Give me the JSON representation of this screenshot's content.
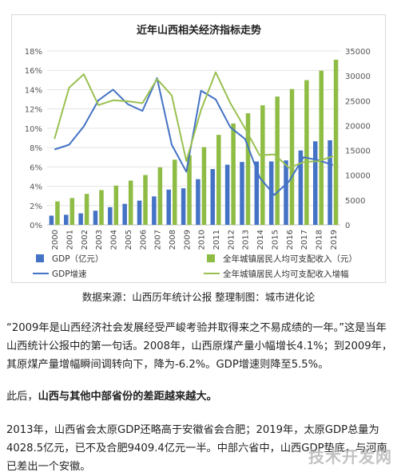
{
  "chart_data": {
    "type": "bar+line",
    "title": "近年山西相关经济指标走势",
    "categories": [
      "2000",
      "2001",
      "2002",
      "2003",
      "2004",
      "2005",
      "2006",
      "2007",
      "2008",
      "2009",
      "2010",
      "2011",
      "2012",
      "2013",
      "2014",
      "2015",
      "2016",
      "2017",
      "2018",
      "2019"
    ],
    "left_axis": {
      "ticks": [
        "0%",
        "2%",
        "4%",
        "6%",
        "8%",
        "10%",
        "12%",
        "14%",
        "16%",
        "18%"
      ],
      "range": [
        0,
        18
      ]
    },
    "right_axis": {
      "ticks": [
        "0",
        "5000",
        "10000",
        "15000",
        "20000",
        "25000",
        "30000",
        "35000"
      ],
      "range": [
        0,
        35000
      ]
    },
    "series": [
      {
        "name": "GDP（亿元）",
        "kind": "bar",
        "axis": "right",
        "color": "#4472c4",
        "values": [
          1850,
          2030,
          2320,
          2850,
          3570,
          4230,
          4880,
          5730,
          7100,
          7360,
          9200,
          11240,
          12110,
          12660,
          12760,
          12770,
          12970,
          14970,
          16820,
          17030
        ]
      },
      {
        "name": "全年城镇居民人均可支配收入（元）",
        "kind": "bar",
        "axis": "right",
        "color": "#8fbc45",
        "values": [
          4720,
          5390,
          6230,
          7000,
          7900,
          8910,
          10030,
          11570,
          13120,
          13990,
          15650,
          18120,
          20410,
          22460,
          24070,
          25830,
          27350,
          29130,
          31040,
          33260
        ]
      },
      {
        "name": "GDP增速",
        "kind": "line",
        "axis": "left",
        "color": "#4472c4",
        "values": [
          7.8,
          8.3,
          10.2,
          12.9,
          14.0,
          12.5,
          11.8,
          15.2,
          8.3,
          5.5,
          13.9,
          13.0,
          10.1,
          8.9,
          4.9,
          3.1,
          4.5,
          7.0,
          6.7,
          6.2
        ]
      },
      {
        "name": "全年城镇居民人均可支配收入增幅",
        "kind": "line",
        "axis": "left",
        "color": "#9ac050",
        "values": [
          8.9,
          14.2,
          15.6,
          12.4,
          12.9,
          12.8,
          12.6,
          15.1,
          13.4,
          6.6,
          11.9,
          15.8,
          12.6,
          10.0,
          7.2,
          7.3,
          5.9,
          6.5,
          6.6,
          7.1
        ]
      }
    ],
    "legend_position": "bottom",
    "grid": "horizontal"
  },
  "source_text": "数据来源：山西历年统计公报 整理制图：城市进化论",
  "paragraphs": {
    "p1": "“2009年是山西经济社会发展经受严峻考验并取得来之不易成绩的一年。”这是当年山西统计公报中的第一句话。2008年，山西原煤产量小幅增长4.1%；到2009年，其原煤产量增幅瞬间调转向下，降为-6.2%。GDP增速则降至5.5%。",
    "p2_prefix": "此后，",
    "p2_bold": "山西与其他中部省份的差距越来越大。",
    "p3": "2013年，山西省会太原GDP还略高于安徽省会合肥；2019年，太原GDP总量为4028.5亿元，已不及合肥9409.4亿元一半。中部六省中，山西GDP垫底，与河南已差出一个安徽。"
  },
  "watermark": "技术开发网"
}
